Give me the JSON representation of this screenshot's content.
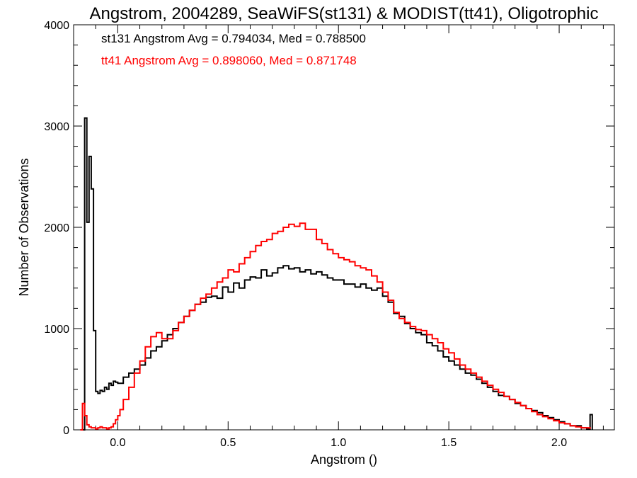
{
  "chart_data": {
    "type": "line",
    "title": "Angstrom, 2004289, SeaWiFS(st131) & MODIST(tt41), Oligotrophic",
    "xlabel": "Angstrom ()",
    "ylabel": "Number of Observations",
    "xlim": [
      -0.2,
      2.25
    ],
    "ylim": [
      0,
      4000
    ],
    "xticks": [
      0.0,
      0.5,
      1.0,
      1.5,
      2.0
    ],
    "xtick_labels": [
      "0.0",
      "0.5",
      "1.0",
      "1.5",
      "2.0"
    ],
    "yticks": [
      0,
      1000,
      2000,
      3000,
      4000
    ],
    "ytick_labels": [
      "0",
      "1000",
      "2000",
      "3000",
      "4000"
    ],
    "grid": false,
    "annotations": [
      {
        "text": "st131 Angstrom Avg = 0.794034, Med = 0.788500",
        "color": "#000000"
      },
      {
        "text": "tt41 Angstrom Avg = 0.898060, Med = 0.871748",
        "color": "#ff0000"
      }
    ],
    "series": [
      {
        "color": "#000000",
        "x": [
          -0.16,
          -0.15,
          -0.14,
          -0.13,
          -0.12,
          -0.11,
          -0.1,
          -0.09,
          -0.08,
          -0.07,
          -0.06,
          -0.05,
          -0.04,
          -0.03,
          -0.02,
          -0.01,
          0.0,
          0.025,
          0.05,
          0.075,
          0.1,
          0.125,
          0.15,
          0.175,
          0.2,
          0.225,
          0.25,
          0.275,
          0.3,
          0.325,
          0.35,
          0.375,
          0.4,
          0.425,
          0.45,
          0.475,
          0.5,
          0.525,
          0.55,
          0.575,
          0.6,
          0.625,
          0.65,
          0.675,
          0.7,
          0.725,
          0.75,
          0.775,
          0.8,
          0.825,
          0.85,
          0.875,
          0.9,
          0.925,
          0.95,
          0.975,
          1.0,
          1.025,
          1.05,
          1.075,
          1.1,
          1.125,
          1.15,
          1.175,
          1.2,
          1.225,
          1.25,
          1.275,
          1.3,
          1.325,
          1.35,
          1.375,
          1.4,
          1.425,
          1.45,
          1.475,
          1.5,
          1.525,
          1.55,
          1.575,
          1.6,
          1.625,
          1.65,
          1.675,
          1.7,
          1.725,
          1.75,
          1.775,
          1.8,
          1.825,
          1.85,
          1.875,
          1.9,
          1.925,
          1.95,
          1.975,
          2.0,
          2.025,
          2.05,
          2.075,
          2.1,
          2.125,
          2.14,
          2.15
        ],
        "values": [
          0,
          3080,
          2050,
          2700,
          2380,
          980,
          380,
          360,
          390,
          380,
          420,
          400,
          460,
          440,
          480,
          470,
          460,
          520,
          560,
          600,
          640,
          710,
          780,
          820,
          880,
          940,
          1000,
          1060,
          1120,
          1180,
          1240,
          1260,
          1310,
          1320,
          1300,
          1410,
          1360,
          1450,
          1400,
          1480,
          1510,
          1500,
          1580,
          1520,
          1550,
          1600,
          1620,
          1590,
          1600,
          1560,
          1580,
          1540,
          1560,
          1530,
          1500,
          1480,
          1480,
          1440,
          1440,
          1410,
          1440,
          1400,
          1380,
          1400,
          1320,
          1260,
          1150,
          1120,
          1050,
          1000,
          960,
          940,
          860,
          830,
          780,
          720,
          680,
          640,
          600,
          560,
          540,
          500,
          460,
          420,
          380,
          340,
          330,
          300,
          260,
          240,
          210,
          190,
          170,
          140,
          120,
          100,
          80,
          60,
          40,
          40,
          20,
          10,
          150,
          0
        ]
      },
      {
        "color": "#ff0000",
        "x": [
          -0.17,
          -0.16,
          -0.15,
          -0.14,
          -0.13,
          -0.12,
          -0.11,
          -0.1,
          -0.09,
          -0.08,
          -0.07,
          -0.06,
          -0.05,
          -0.04,
          -0.03,
          -0.02,
          -0.01,
          0.0,
          0.01,
          0.025,
          0.05,
          0.075,
          0.1,
          0.125,
          0.15,
          0.175,
          0.2,
          0.225,
          0.25,
          0.275,
          0.3,
          0.325,
          0.35,
          0.375,
          0.4,
          0.425,
          0.45,
          0.475,
          0.5,
          0.525,
          0.55,
          0.575,
          0.6,
          0.625,
          0.65,
          0.675,
          0.7,
          0.725,
          0.75,
          0.775,
          0.8,
          0.825,
          0.85,
          0.875,
          0.9,
          0.925,
          0.95,
          0.975,
          1.0,
          1.025,
          1.05,
          1.075,
          1.1,
          1.125,
          1.15,
          1.175,
          1.2,
          1.225,
          1.25,
          1.275,
          1.3,
          1.325,
          1.35,
          1.375,
          1.4,
          1.425,
          1.45,
          1.475,
          1.5,
          1.525,
          1.55,
          1.575,
          1.6,
          1.625,
          1.65,
          1.675,
          1.7,
          1.725,
          1.75,
          1.775,
          1.8,
          1.825,
          1.85,
          1.875,
          1.9,
          1.925,
          1.95,
          1.975,
          2.0,
          2.025,
          2.05,
          2.075,
          2.1,
          2.125,
          2.14
        ],
        "values": [
          0,
          260,
          140,
          50,
          30,
          20,
          20,
          10,
          20,
          30,
          20,
          20,
          10,
          20,
          30,
          60,
          100,
          140,
          200,
          300,
          420,
          560,
          680,
          820,
          920,
          960,
          900,
          900,
          980,
          1060,
          1120,
          1180,
          1240,
          1300,
          1340,
          1400,
          1460,
          1500,
          1580,
          1560,
          1640,
          1700,
          1760,
          1820,
          1860,
          1880,
          1940,
          1960,
          2000,
          2030,
          2010,
          2040,
          1980,
          1980,
          1880,
          1840,
          1780,
          1740,
          1700,
          1680,
          1660,
          1620,
          1600,
          1580,
          1520,
          1460,
          1360,
          1280,
          1160,
          1100,
          1060,
          1020,
          990,
          980,
          940,
          900,
          860,
          800,
          760,
          700,
          640,
          600,
          560,
          520,
          480,
          440,
          400,
          370,
          330,
          300,
          270,
          240,
          210,
          180,
          150,
          130,
          110,
          90,
          70,
          60,
          40,
          30,
          20,
          20,
          10
        ]
      }
    ]
  }
}
